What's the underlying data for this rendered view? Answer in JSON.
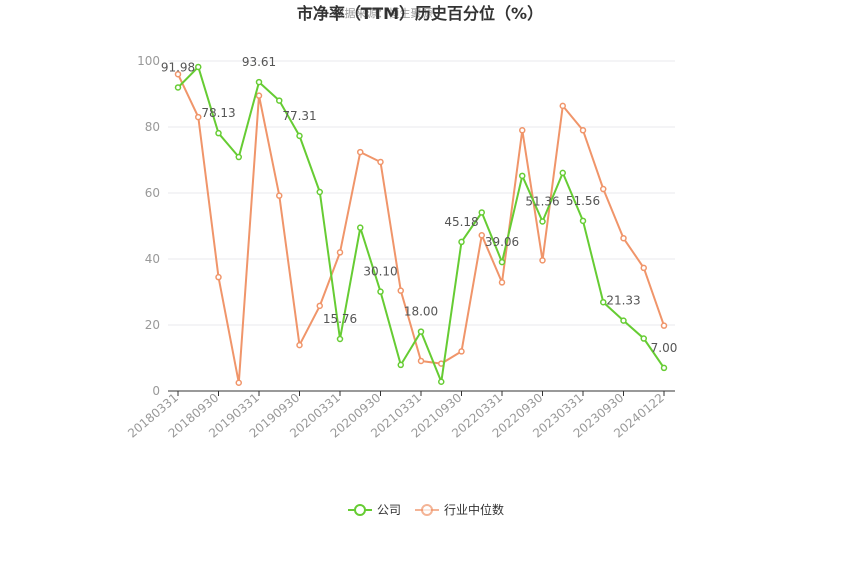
{
  "chart_data": {
    "type": "line",
    "title": "市净率（TTM）历史百分位（%）",
    "subtitle": "数据来源：恒生聚源",
    "xlabel": "",
    "ylabel": "",
    "ylim": [
      0,
      100
    ],
    "yticks": [
      0,
      20,
      40,
      60,
      80,
      100
    ],
    "x": [
      "20180331",
      "20180630",
      "20180930",
      "20181231",
      "20190331",
      "20190630",
      "20190930",
      "20191231",
      "20200331",
      "20200630",
      "20200930",
      "20201231",
      "20210331",
      "20210630",
      "20210930",
      "20211231",
      "20220331",
      "20220630",
      "20220930",
      "20221231",
      "20230331",
      "20230630",
      "20230930",
      "20231231",
      "20240122"
    ],
    "xtick_labels": [
      "20180331",
      "20180930",
      "20190331",
      "20190930",
      "20200331",
      "20200930",
      "20210331",
      "20210930",
      "20220331",
      "20220930",
      "20230331",
      "20230930",
      "20240122"
    ],
    "grid": true,
    "legend_position": "bottom",
    "series": [
      {
        "name": "公司",
        "color": "#66cc33",
        "values": [
          91.98,
          98.2,
          78.13,
          70.9,
          93.61,
          88.0,
          77.31,
          60.3,
          15.76,
          49.5,
          30.1,
          7.9,
          18.0,
          2.8,
          45.18,
          54.1,
          39.06,
          65.2,
          51.36,
          66.1,
          51.56,
          26.9,
          21.33,
          15.9,
          7.0
        ]
      },
      {
        "name": "行业中位数",
        "color": "#f0956a",
        "values": [
          96.0,
          83.0,
          34.5,
          2.5,
          89.5,
          59.2,
          13.9,
          25.8,
          42.0,
          72.4,
          69.4,
          30.4,
          9.1,
          8.3,
          12.0,
          47.2,
          32.9,
          79.0,
          39.6,
          86.4,
          79.0,
          61.2,
          46.3,
          37.3,
          19.8
        ]
      }
    ],
    "data_labels": [
      {
        "series": 0,
        "index": 0,
        "text": "91.98"
      },
      {
        "series": 0,
        "index": 2,
        "text": "78.13"
      },
      {
        "series": 0,
        "index": 4,
        "text": "93.61"
      },
      {
        "series": 0,
        "index": 6,
        "text": "77.31"
      },
      {
        "series": 0,
        "index": 8,
        "text": "15.76"
      },
      {
        "series": 0,
        "index": 10,
        "text": "30.10"
      },
      {
        "series": 0,
        "index": 12,
        "text": "18.00"
      },
      {
        "series": 0,
        "index": 14,
        "text": "45.18"
      },
      {
        "series": 0,
        "index": 16,
        "text": "39.06"
      },
      {
        "series": 0,
        "index": 18,
        "text": "51.36"
      },
      {
        "series": 0,
        "index": 20,
        "text": "51.56"
      },
      {
        "series": 0,
        "index": 22,
        "text": "21.33"
      },
      {
        "series": 0,
        "index": 24,
        "text": "7.00"
      }
    ]
  }
}
